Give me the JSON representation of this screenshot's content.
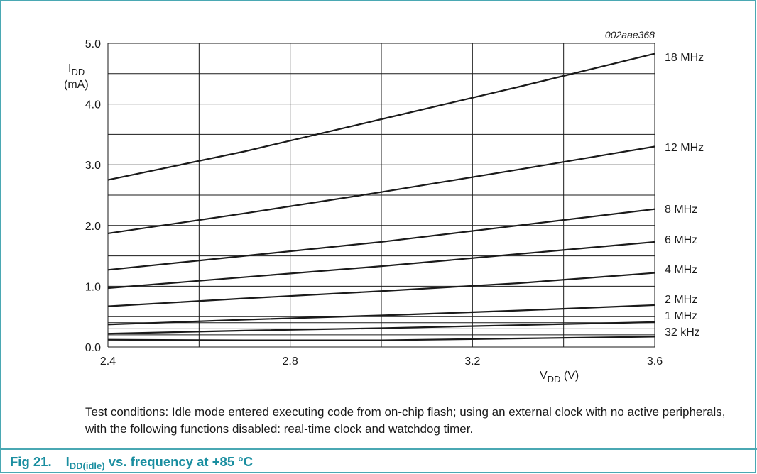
{
  "chart_data": {
    "type": "line",
    "id_label": "002aae368",
    "ylabel_main": "I",
    "ylabel_sub": "DD",
    "ylabel_unit": "(mA)",
    "xlabel_main": "V",
    "xlabel_sub": "DD",
    "xlabel_unit": " (V)",
    "xlim": [
      2.4,
      3.6
    ],
    "ylim": [
      0.0,
      5.0
    ],
    "x_ticks": [
      "2.4",
      "2.8",
      "3.2",
      "3.6"
    ],
    "y_ticks": [
      "0.0",
      "1.0",
      "2.0",
      "3.0",
      "4.0",
      "5.0"
    ],
    "grid": true,
    "x": [
      2.4,
      2.7,
      3.0,
      3.3,
      3.6
    ],
    "series": [
      {
        "name": "18 MHz",
        "values": [
          2.75,
          3.22,
          3.75,
          4.28,
          4.83
        ]
      },
      {
        "name": "12 MHz",
        "values": [
          1.87,
          2.2,
          2.55,
          2.92,
          3.3
        ]
      },
      {
        "name": "8 MHz",
        "values": [
          1.27,
          1.5,
          1.73,
          2.0,
          2.27
        ]
      },
      {
        "name": "6 MHz",
        "values": [
          0.97,
          1.15,
          1.33,
          1.53,
          1.73
        ]
      },
      {
        "name": "4 MHz",
        "values": [
          0.67,
          0.8,
          0.92,
          1.05,
          1.22
        ]
      },
      {
        "name": "2 MHz",
        "values": [
          0.37,
          0.45,
          0.52,
          0.6,
          0.69
        ]
      },
      {
        "name": "1 MHz",
        "values": [
          0.22,
          0.27,
          0.31,
          0.36,
          0.41
        ]
      },
      {
        "name": "32 kHz",
        "values": [
          0.12,
          0.11,
          0.11,
          0.14,
          0.17
        ]
      }
    ]
  },
  "note": "Test conditions: Idle mode entered executing code from on-chip flash; using an external clock with no active peripherals, with the following functions disabled: real-time clock and watchdog timer.",
  "caption": {
    "number": "Fig 21.",
    "symbol": "I",
    "symbol_sub": "DD(idle)",
    "text": " vs. frequency at +85 °C"
  },
  "colors": {
    "frame": "#4aa8b3",
    "caption": "#1a8ea0",
    "line": "#1a1a1a",
    "grid": "#1a1a1a"
  }
}
